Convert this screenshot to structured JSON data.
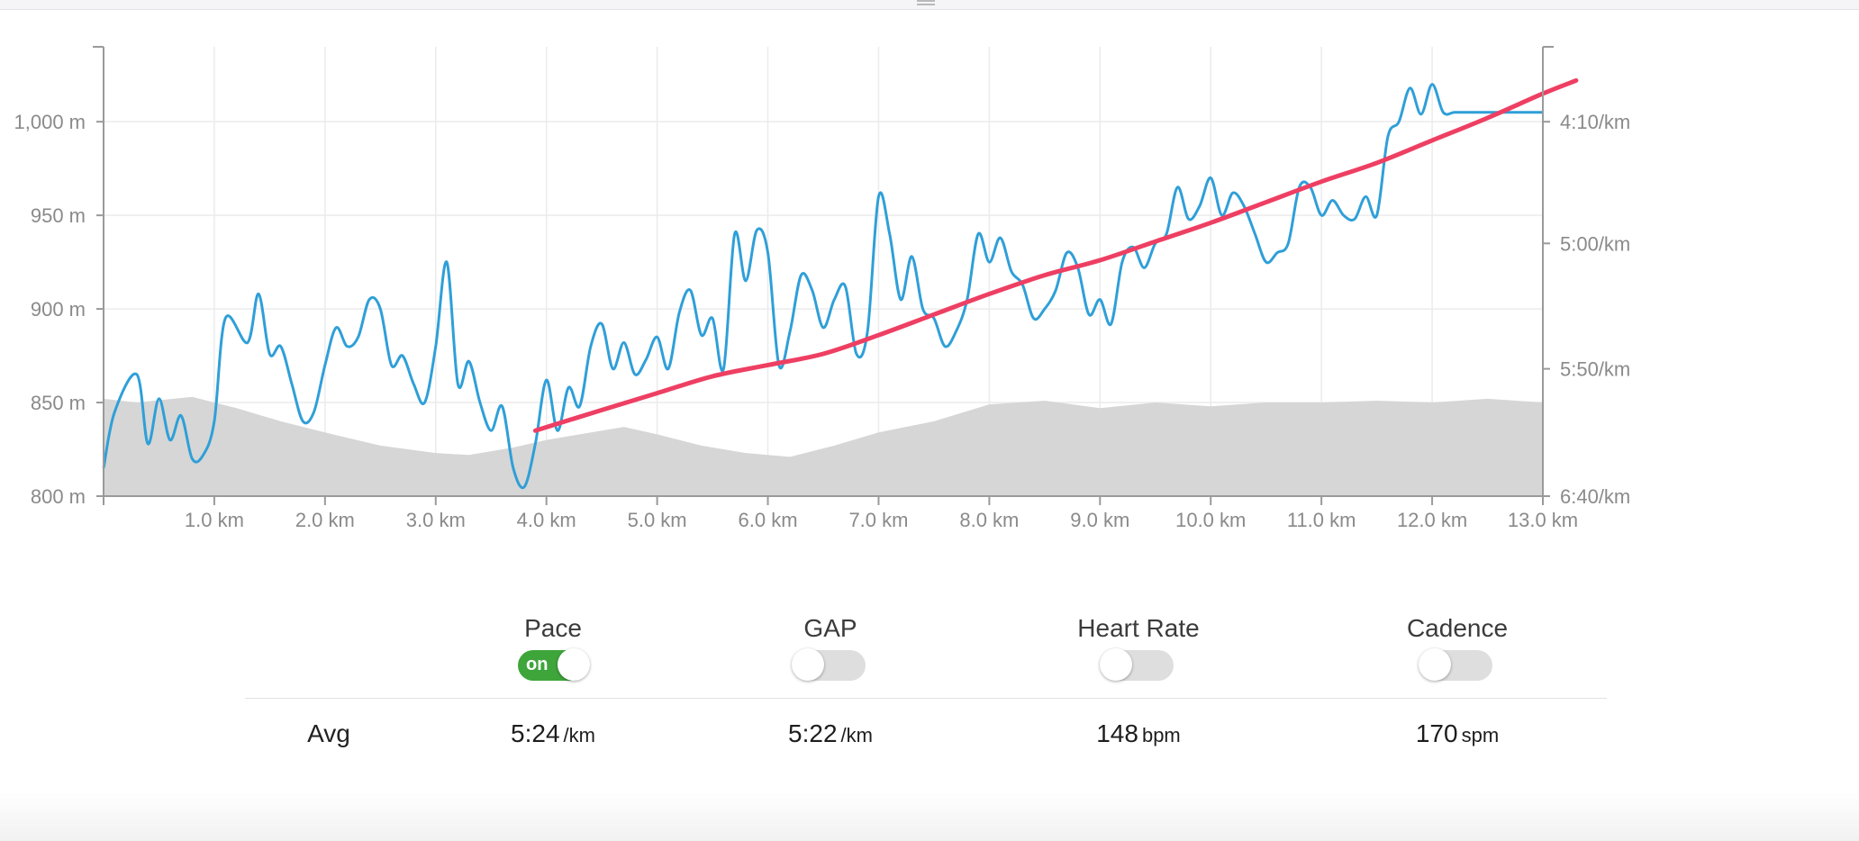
{
  "chart_data": {
    "type": "line",
    "x_axis": {
      "ticks": [
        "1.0 km",
        "2.0 km",
        "3.0 km",
        "4.0 km",
        "5.0 km",
        "6.0 km",
        "7.0 km",
        "8.0 km",
        "9.0 km",
        "10.0 km",
        "11.0 km",
        "12.0 km",
        "13.0 km"
      ],
      "range_km": [
        0,
        13
      ]
    },
    "y_left": {
      "ticks": [
        "800 m",
        "850 m",
        "900 m",
        "950 m",
        "1,000 m"
      ],
      "range_m": [
        800,
        1040
      ]
    },
    "y_right": {
      "ticks": [
        "6:40/km",
        "5:50/km",
        "5:00/km",
        "4:10/km"
      ],
      "range_sec_per_km": [
        400,
        220
      ],
      "reversed": true
    },
    "grid": true,
    "series": [
      {
        "kind": "elevation-area",
        "axis": "left",
        "color": "#d6d6d6",
        "km": [
          0,
          0.3,
          0.8,
          1.2,
          1.6,
          2.0,
          2.5,
          3.0,
          3.3,
          3.7,
          4.0,
          4.3,
          4.7,
          5.0,
          5.4,
          5.8,
          6.0,
          6.2,
          6.6,
          7.0,
          7.5,
          8.0,
          8.5,
          9.0,
          9.5,
          10.0,
          10.5,
          11.0,
          11.5,
          12.0,
          12.5,
          13.0
        ],
        "elevation_m": [
          852,
          850,
          853,
          847,
          840,
          834,
          827,
          823,
          822,
          826,
          830,
          833,
          837,
          833,
          827,
          823,
          822,
          821,
          827,
          834,
          840,
          849,
          851,
          847,
          850,
          848,
          850,
          850,
          851,
          850,
          852,
          850
        ]
      },
      {
        "kind": "pace-line",
        "axis": "right",
        "color": "#2f9fd8",
        "km": [
          0,
          0.1,
          0.3,
          0.4,
          0.5,
          0.6,
          0.7,
          0.8,
          0.9,
          1.0,
          1.1,
          1.3,
          1.4,
          1.5,
          1.6,
          1.7,
          1.8,
          1.9,
          2.0,
          2.1,
          2.2,
          2.3,
          2.4,
          2.5,
          2.6,
          2.7,
          2.8,
          2.9,
          3.0,
          3.1,
          3.2,
          3.3,
          3.4,
          3.5,
          3.6,
          3.7,
          3.8,
          3.9,
          4.0,
          4.1,
          4.2,
          4.3,
          4.4,
          4.5,
          4.6,
          4.7,
          4.8,
          4.9,
          5.0,
          5.1,
          5.2,
          5.3,
          5.4,
          5.5,
          5.6,
          5.7,
          5.8,
          5.9,
          6.0,
          6.1,
          6.2,
          6.3,
          6.4,
          6.5,
          6.6,
          6.7,
          6.8,
          6.9,
          7.0,
          7.1,
          7.2,
          7.3,
          7.4,
          7.5,
          7.6,
          7.7,
          7.8,
          7.9,
          8.0,
          8.1,
          8.2,
          8.3,
          8.4,
          8.5,
          8.6,
          8.7,
          8.8,
          8.9,
          9.0,
          9.1,
          9.2,
          9.3,
          9.4,
          9.5,
          9.6,
          9.7,
          9.8,
          9.9,
          10.0,
          10.1,
          10.2,
          10.3,
          10.4,
          10.5,
          10.6,
          10.7,
          10.8,
          10.9,
          11.0,
          11.1,
          11.2,
          11.3,
          11.4,
          11.5,
          11.6,
          11.7,
          11.8,
          11.9,
          12.0,
          12.1,
          12.2,
          12.3,
          12.4,
          12.5,
          12.6,
          12.7,
          12.8,
          12.9,
          13.0
        ],
        "elevation_m": [
          815,
          845,
          865,
          828,
          852,
          830,
          843,
          820,
          822,
          840,
          895,
          882,
          908,
          876,
          880,
          860,
          840,
          845,
          870,
          890,
          880,
          885,
          905,
          900,
          870,
          875,
          860,
          850,
          880,
          925,
          860,
          872,
          850,
          835,
          848,
          815,
          805,
          828,
          862,
          835,
          858,
          848,
          880,
          892,
          868,
          882,
          865,
          873,
          885,
          868,
          898,
          910,
          886,
          895,
          868,
          940,
          915,
          942,
          930,
          870,
          888,
          918,
          910,
          890,
          905,
          912,
          876,
          888,
          960,
          940,
          905,
          928,
          900,
          895,
          880,
          888,
          905,
          940,
          925,
          938,
          920,
          913,
          895,
          900,
          910,
          930,
          922,
          897,
          905,
          892,
          925,
          933,
          922,
          935,
          940,
          965,
          948,
          955,
          970,
          950,
          962,
          955,
          940,
          925,
          930,
          935,
          965,
          965,
          950,
          958,
          950,
          948,
          960,
          950,
          992,
          1000,
          1018,
          1004,
          1020,
          1005,
          1005,
          1005,
          1005,
          1005,
          1005,
          1005,
          1005,
          1005,
          1005
        ]
      },
      {
        "kind": "pace-trend",
        "axis": "right",
        "color": "#ee3f63",
        "km": [
          3.9,
          4.5,
          5.0,
          5.5,
          6.0,
          6.5,
          7.0,
          7.5,
          8.0,
          8.5,
          9.0,
          9.5,
          10.0,
          10.5,
          11.0,
          11.5,
          12.0,
          12.5,
          13.0
        ],
        "elevation_m": [
          835,
          846,
          855,
          864,
          870,
          876,
          886,
          897,
          908,
          918,
          926,
          936,
          946,
          957,
          968,
          978,
          990,
          1002,
          1015
        ]
      }
    ]
  },
  "toggles": [
    {
      "label": "Pace",
      "state": "on",
      "on_text": "on"
    },
    {
      "label": "GAP",
      "state": "off",
      "on_text": ""
    },
    {
      "label": "Heart Rate",
      "state": "off",
      "on_text": ""
    },
    {
      "label": "Cadence",
      "state": "off",
      "on_text": ""
    }
  ],
  "averages": {
    "label": "Avg",
    "pace": {
      "value": "5:24",
      "unit": "/km"
    },
    "gap": {
      "value": "5:22",
      "unit": "/km"
    },
    "heart_rate": {
      "value": "148",
      "unit": "bpm"
    },
    "cadence": {
      "value": "170",
      "unit": "spm"
    }
  }
}
